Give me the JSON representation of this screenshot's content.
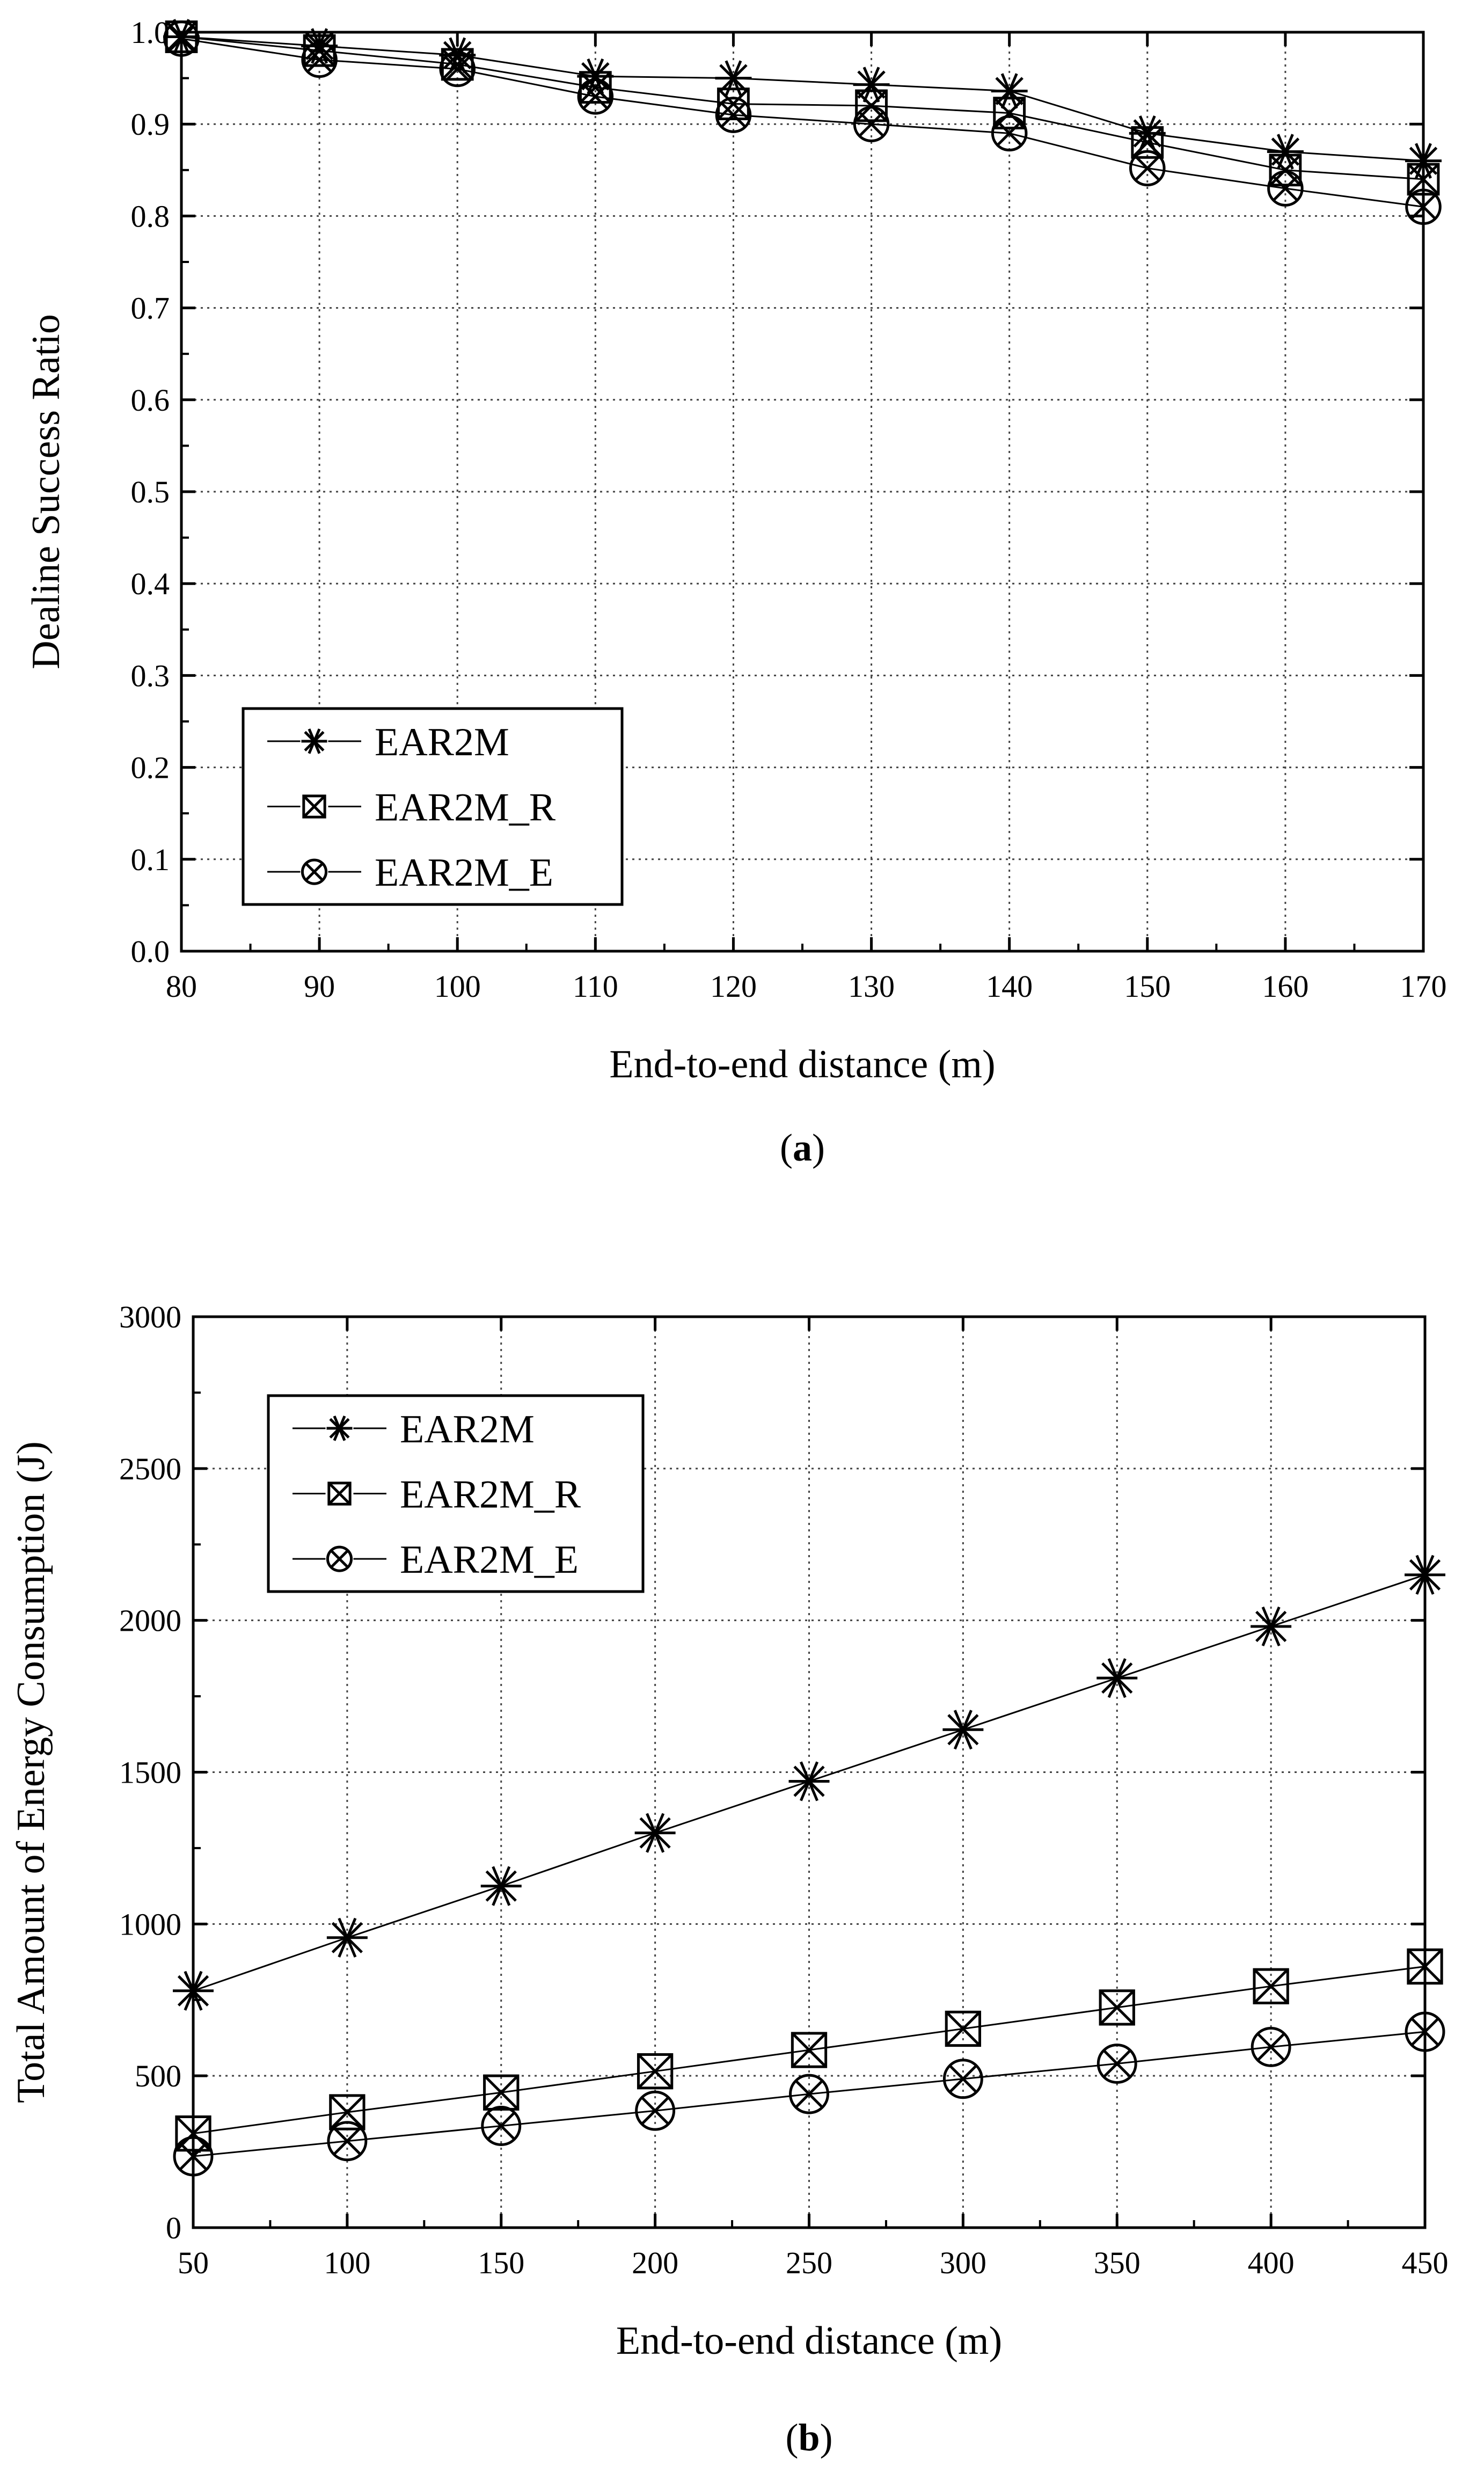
{
  "chart_data": [
    {
      "type": "line",
      "caption": "a",
      "title": "",
      "xlabel": "End-to-end distance (m)",
      "ylabel": "Dealine Success Ratio",
      "xlim": [
        80,
        170
      ],
      "ylim": [
        0.0,
        1.0
      ],
      "x_ticks": [
        "80",
        "90",
        "100",
        "110",
        "120",
        "130",
        "140",
        "150",
        "160",
        "170"
      ],
      "y_ticks": [
        "0.0",
        "0.1",
        "0.2",
        "0.3",
        "0.4",
        "0.5",
        "0.6",
        "0.7",
        "0.8",
        "0.9",
        "1.0"
      ],
      "grid": true,
      "legend_position": "bottom-left",
      "x": [
        80,
        90,
        100,
        110,
        120,
        130,
        140,
        150,
        160,
        170
      ],
      "series": [
        {
          "name": "EAR2M",
          "marker": "star",
          "values": [
            0.995,
            0.985,
            0.975,
            0.952,
            0.95,
            0.943,
            0.936,
            0.89,
            0.87,
            0.86
          ]
        },
        {
          "name": "EAR2M_R",
          "marker": "boxed-x",
          "values": [
            0.995,
            0.98,
            0.965,
            0.94,
            0.922,
            0.92,
            0.912,
            0.88,
            0.85,
            0.84
          ]
        },
        {
          "name": "EAR2M_E",
          "marker": "circled-x",
          "values": [
            0.993,
            0.97,
            0.96,
            0.93,
            0.91,
            0.9,
            0.89,
            0.852,
            0.83,
            0.81
          ]
        }
      ]
    },
    {
      "type": "line",
      "caption": "b",
      "title": "",
      "xlabel": "End-to-end distance (m)",
      "ylabel": "Total Amount of Energy Consumption (J)",
      "xlim": [
        50,
        450
      ],
      "ylim": [
        0,
        3000
      ],
      "x_ticks": [
        "50",
        "100",
        "150",
        "200",
        "250",
        "300",
        "350",
        "400",
        "450"
      ],
      "y_ticks": [
        "0",
        "500",
        "1000",
        "1500",
        "2000",
        "2500",
        "3000"
      ],
      "grid": true,
      "legend_position": "top-left",
      "x": [
        50,
        100,
        150,
        200,
        250,
        300,
        350,
        400,
        450
      ],
      "series": [
        {
          "name": "EAR2M",
          "marker": "star",
          "values": [
            780,
            955,
            1125,
            1300,
            1470,
            1640,
            1810,
            1980,
            2150
          ]
        },
        {
          "name": "EAR2M_R",
          "marker": "boxed-x",
          "values": [
            310,
            380,
            445,
            515,
            585,
            655,
            725,
            795,
            860
          ]
        },
        {
          "name": "EAR2M_E",
          "marker": "circled-x",
          "values": [
            235,
            285,
            335,
            385,
            440,
            490,
            540,
            595,
            645
          ]
        }
      ]
    }
  ]
}
